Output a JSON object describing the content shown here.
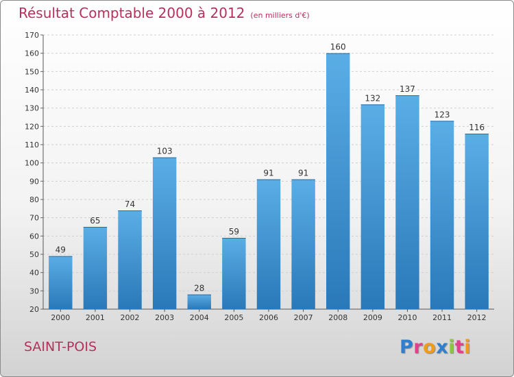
{
  "header": {
    "title": "Résultat Comptable 2000 à 2012",
    "unit_note": "(en milliers d'€)"
  },
  "footer": {
    "commune": "SAINT-POIS",
    "logo_letters": [
      "P",
      "r",
      "o",
      "x",
      "i",
      "t",
      "i"
    ],
    "logo_colors": [
      "#2e7fd0",
      "#e43f8c",
      "#f29a1a",
      "#2e7fd0",
      "#8cc63f",
      "#e43f8c",
      "#f29a1a"
    ]
  },
  "chart_data": {
    "type": "bar",
    "title": "Résultat Comptable 2000 à 2012",
    "categories": [
      "2000",
      "2001",
      "2002",
      "2003",
      "2004",
      "2005",
      "2006",
      "2007",
      "2008",
      "2009",
      "2010",
      "2011",
      "2012"
    ],
    "values": [
      49,
      65,
      74,
      103,
      28,
      59,
      91,
      91,
      160,
      132,
      137,
      123,
      116
    ],
    "xlabel": "",
    "ylabel": "",
    "ylim": [
      20,
      170
    ],
    "yticks": [
      20,
      30,
      40,
      50,
      60,
      70,
      80,
      90,
      100,
      110,
      120,
      130,
      140,
      150,
      160,
      170
    ],
    "grid": true,
    "bar_color": "#3f95d6"
  }
}
